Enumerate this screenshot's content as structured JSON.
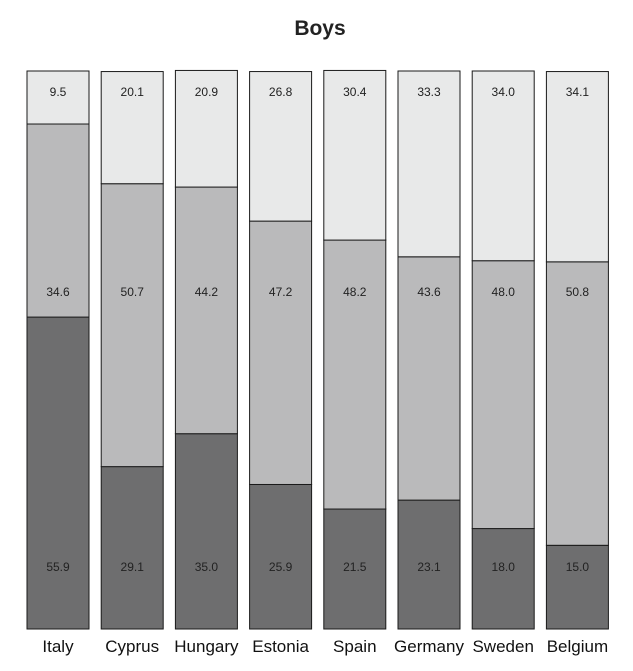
{
  "chart_data": {
    "type": "bar",
    "stacked": true,
    "title": "Boys",
    "xlabel": "",
    "ylabel": "",
    "ylim": [
      0,
      100
    ],
    "grid": false,
    "categories": [
      "Italy",
      "Cyprus",
      "Hungary",
      "Estonia",
      "Spain",
      "Germany",
      "Sweden",
      "Belgium"
    ],
    "series": [
      {
        "color": "#6e6e6f",
        "values": [
          55.9,
          29.1,
          35.0,
          25.9,
          21.5,
          23.1,
          18.0,
          15.0
        ],
        "labels": [
          "55.9",
          "29.1",
          "35.0",
          "25.9",
          "21.5",
          "23.1",
          "18.0",
          "15.0"
        ]
      },
      {
        "color": "#bababb",
        "values": [
          34.6,
          50.7,
          44.2,
          47.2,
          48.2,
          43.6,
          48.0,
          50.8
        ],
        "labels": [
          "34.6",
          "50.7",
          "44.2",
          "47.2",
          "48.2",
          "43.6",
          "48.0",
          "50.8"
        ]
      },
      {
        "color": "#e8e9e9",
        "values": [
          9.5,
          20.1,
          20.9,
          26.8,
          30.4,
          33.3,
          34.0,
          34.1
        ],
        "labels": [
          "9.5",
          "20.1",
          "20.9",
          "26.8",
          "30.4",
          "33.3",
          "34.0",
          "34.1"
        ]
      }
    ]
  }
}
